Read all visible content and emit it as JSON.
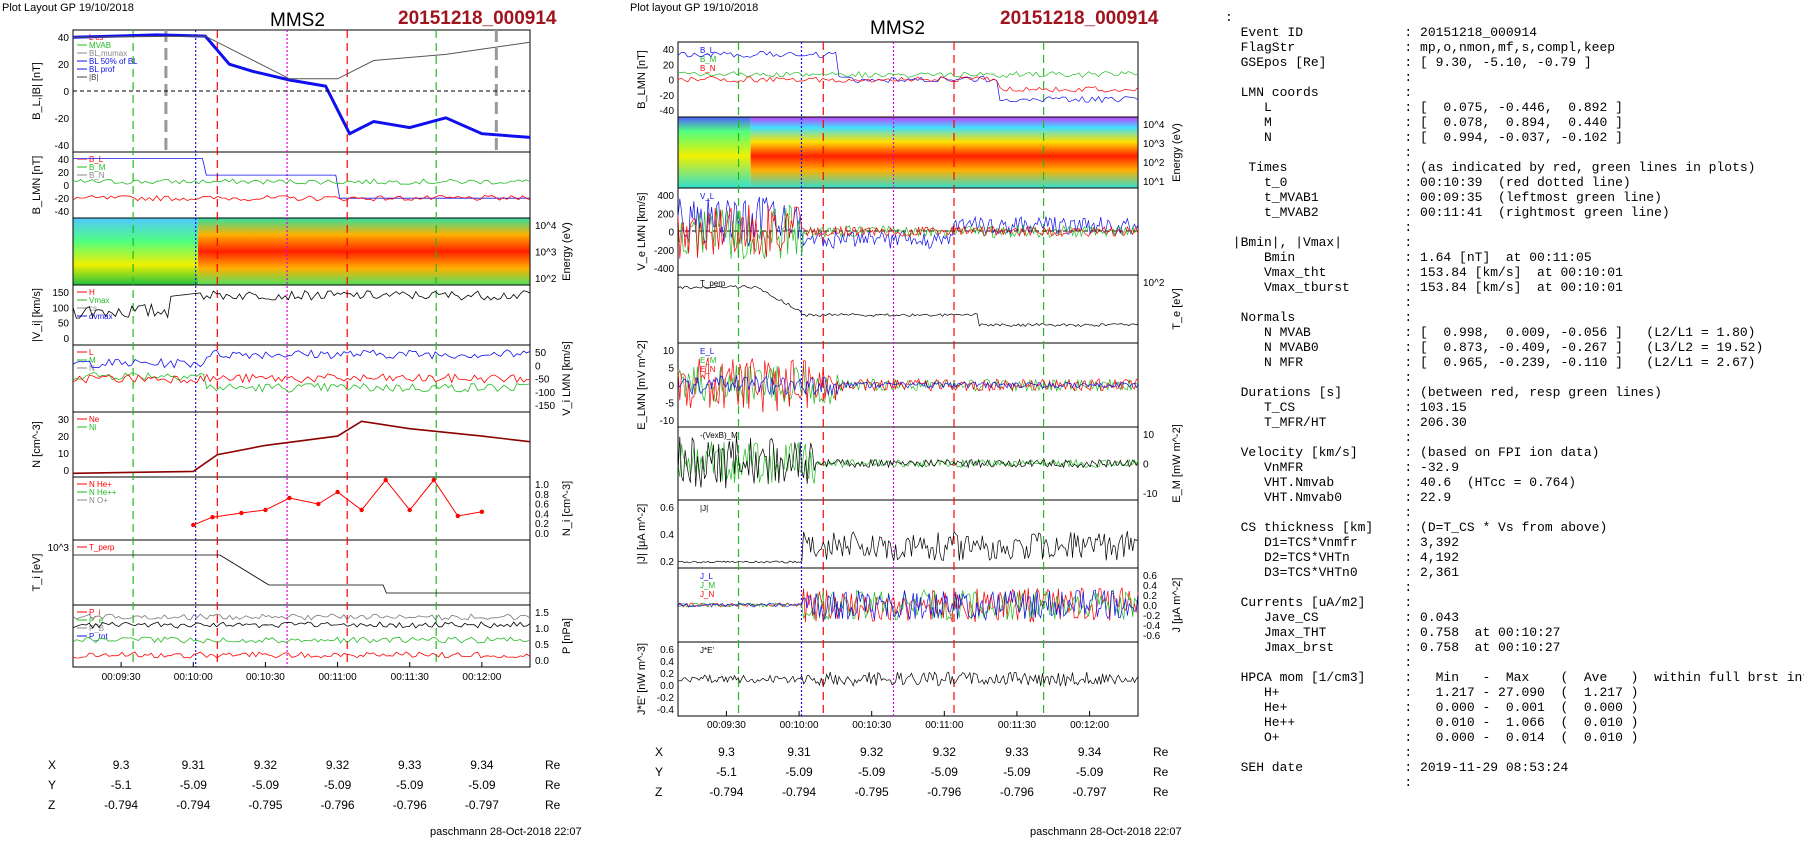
{
  "header": {
    "left_plot_layout": "Plot Layout GP 19/10/2018",
    "mid_plot_layout": "Plot layout GP 19/10/2018",
    "spacecraft": "MMS2",
    "event": "20151218_000914",
    "footer": "paschmann 28-Oct-2018 22:07"
  },
  "time_ticks": [
    "00:09:30",
    "00:10:00",
    "00:10:30",
    "00:11:00",
    "00:11:30",
    "00:12:00"
  ],
  "coord_table": {
    "rows": [
      {
        "label": "X",
        "values": [
          "9.3",
          "9.31",
          "9.32",
          "9.32",
          "9.33",
          "9.34"
        ],
        "unit": "Re"
      },
      {
        "label": "Y",
        "values": [
          "-5.1",
          "-5.09",
          "-5.09",
          "-5.09",
          "-5.09",
          "-5.09"
        ],
        "unit": "Re"
      },
      {
        "label": "Z",
        "values": [
          "-0.794",
          "-0.794",
          "-0.795",
          "-0.796",
          "-0.796",
          "-0.797"
        ],
        "unit": "Re"
      }
    ]
  },
  "left_panels": {
    "p1": {
      "ylabel": "B_L,|B| [nT]",
      "ticks": [
        "40",
        "20",
        "0",
        "-20",
        "-40"
      ],
      "legend": [
        "L cs",
        "MVAB",
        "BL,mumax",
        "BL 50% of BL",
        "BL prof",
        "|B|"
      ]
    },
    "p2": {
      "ylabel": "B_LMN [nT]",
      "ticks": [
        "40",
        "20",
        "0",
        "-20",
        "-40"
      ],
      "legend": [
        "B_L",
        "B_M",
        "B_N"
      ]
    },
    "p3": {
      "ylabel": "Energy (eV)",
      "ticks": [
        "10^4",
        "10^3",
        "10^2"
      ]
    },
    "p4": {
      "ylabel": "|V_i| [km/s]",
      "ticks": [
        "150",
        "100",
        "50",
        "0"
      ],
      "legend": [
        "H",
        "Vmax",
        "cs",
        "dvmax"
      ]
    },
    "p5": {
      "ylabel": "V_i LMN [km/s]",
      "ticks": [
        "50",
        "0",
        "-50",
        "-100",
        "-150"
      ],
      "legend": [
        "L",
        "M",
        "N"
      ]
    },
    "p6": {
      "ylabel": "N [cm^-3]",
      "ticks": [
        "30",
        "20",
        "10",
        "0"
      ],
      "legend": [
        "Ne",
        "Ni"
      ]
    },
    "p7": {
      "ylabel": "N_i [cm^-3]",
      "ticks": [
        "1.0",
        "0.8",
        "0.6",
        "0.4",
        "0.2",
        "0.0"
      ],
      "legend": [
        "N  He+",
        "N  He++",
        "N  O+"
      ]
    },
    "p8": {
      "ylabel": "T_i [eV]",
      "ticks": [
        "10^3"
      ],
      "legend": [
        "T_perp"
      ]
    },
    "p9": {
      "ylabel": "P [nPa]",
      "ticks": [
        "1.5",
        "1.0",
        "0.5",
        "0.0"
      ],
      "legend": [
        "P_i",
        "P_e",
        "P_B",
        "P_tot"
      ]
    }
  },
  "mid_panels": {
    "p1": {
      "ylabel": "B_LMN [nT]",
      "ticks": [
        "40",
        "20",
        "0",
        "-20",
        "-40"
      ],
      "legend": [
        "B_L",
        "B_M",
        "B_N"
      ]
    },
    "p2": {
      "ylabel": "Energy (eV)",
      "ticks": [
        "10^4",
        "10^3",
        "10^2",
        "10^1"
      ]
    },
    "p3": {
      "ylabel": "V_e LMN [km/s]",
      "ticks": [
        "400",
        "200",
        "0",
        "-200",
        "-400"
      ],
      "legend": [
        "V_L"
      ]
    },
    "p4": {
      "ylabel": "T_e [eV]",
      "ticks": [
        "10^2"
      ],
      "legend": [
        "T_perp"
      ]
    },
    "p5": {
      "ylabel": "E_LMN [mV m^-2]",
      "ticks": [
        "10",
        "5",
        "0",
        "-5",
        "-10"
      ],
      "legend": [
        "E_L",
        "E_M",
        "E_N"
      ]
    },
    "p6": {
      "ylabel": "E_M [mW m^-2]",
      "ticks": [
        "10",
        "0",
        "-10"
      ],
      "legend": [
        "-(VexB)_M"
      ]
    },
    "p7": {
      "ylabel": "|J| [μA m^-2]",
      "ticks": [
        "0.6",
        "0.4",
        "0.2"
      ],
      "legend": [
        "|J|"
      ]
    },
    "p8": {
      "ylabel": "J [μA m^-2]",
      "ticks": [
        "0.6",
        "0.4",
        "0.2",
        "0.0",
        "-0.2",
        "-0.4",
        "-0.6"
      ],
      "legend": [
        "J_L",
        "J_M",
        "J_N"
      ]
    },
    "p9": {
      "ylabel": "J*E' [nW m^-3]",
      "ticks": [
        "0.6",
        "0.4",
        "0.2",
        "0.0",
        "-0.2",
        "-0.4"
      ],
      "legend": [
        "J*E'"
      ]
    }
  },
  "chart_data": [
    {
      "type": "line",
      "title": "MMS2  20151218_000914",
      "xlabel": "",
      "x_ticks": [
        "00:09:30",
        "00:10:00",
        "00:10:30",
        "00:11:00",
        "00:11:30",
        "00:12:00"
      ],
      "series": [
        {
          "name": "B_L",
          "panel": "B_L,|B| [nT]",
          "x": [
            "00:09:10",
            "00:09:45",
            "00:10:05",
            "00:10:15",
            "00:10:25",
            "00:10:40",
            "00:10:55",
            "00:11:05",
            "00:11:15",
            "00:11:30",
            "00:11:45",
            "00:12:00",
            "00:12:20"
          ],
          "values": [
            44,
            46,
            45,
            22,
            16,
            9,
            4,
            -35,
            -25,
            -30,
            -22,
            -35,
            -38
          ]
        },
        {
          "name": "|B|",
          "panel": "B_L,|B| [nT]",
          "x": [
            "00:09:10",
            "00:10:05",
            "00:10:40",
            "00:11:00",
            "00:11:15",
            "00:11:45",
            "00:12:20"
          ],
          "values": [
            44,
            45,
            10,
            10,
            25,
            30,
            40
          ]
        },
        {
          "name": "Ni",
          "panel": "N [cm^-3]",
          "x": [
            "00:09:10",
            "00:10:00",
            "00:10:10",
            "00:10:30",
            "00:11:00",
            "00:11:10",
            "00:11:30",
            "00:12:00",
            "00:12:20"
          ],
          "values": [
            2,
            3,
            12,
            17,
            22,
            30,
            26,
            22,
            19
          ]
        },
        {
          "name": "N He++",
          "panel": "N_i [cm^-3]",
          "x": [
            "00:10:00",
            "00:10:08",
            "00:10:20",
            "00:10:30",
            "00:10:40",
            "00:10:52",
            "00:11:00",
            "00:11:10",
            "00:11:20",
            "00:11:30",
            "00:11:40",
            "00:11:50",
            "00:12:00"
          ],
          "values": [
            0.25,
            0.38,
            0.45,
            0.5,
            0.7,
            0.6,
            0.8,
            0.5,
            1.0,
            0.5,
            1.0,
            0.4,
            0.47
          ]
        }
      ]
    }
  ],
  "event_table": [
    {
      "text": ":"
    },
    {
      "text": "  Event ID             : 20151218_000914"
    },
    {
      "text": "  FlagStr              : mp,o,nmon,mf,s,compl,keep"
    },
    {
      "text": "  GSEpos [Re]          : [ 9.30, -5.10, -0.79 ]"
    },
    {
      "text": "                       :"
    },
    {
      "text": "  LMN coords           :"
    },
    {
      "text": "     L                 : [  0.075, -0.446,  0.892 ]"
    },
    {
      "text": "     M                 : [  0.078,  0.894,  0.440 ]"
    },
    {
      "text": "     N                 : [  0.994, -0.037, -0.102 ]"
    },
    {
      "text": "                       :"
    },
    {
      "text": "   Times               : (as indicated by red, green lines in plots)"
    },
    {
      "text": "     t_0               : 00:10:39  (red dotted line)"
    },
    {
      "text": "     t_MVAB1           : 00:09:35  (leftmost green line)"
    },
    {
      "text": "     t_MVAB2           : 00:11:41  (rightmost green line)"
    },
    {
      "text": "                       :"
    },
    {
      "text": " |Bmin|, |Vmax|        :"
    },
    {
      "text": "     Bmin              : 1.64 [nT]  at 00:11:05"
    },
    {
      "text": "     Vmax_tht          : 153.84 [km/s]  at 00:10:01"
    },
    {
      "text": "     Vmax_tburst       : 153.84 [km/s]  at 00:10:01"
    },
    {
      "text": "                       :"
    },
    {
      "text": "  Normals              :"
    },
    {
      "text": "     N MVAB            : [  0.998,  0.009, -0.056 ]   (L2/L1 = 1.80)"
    },
    {
      "text": "     N MVAB0           : [  0.873, -0.409, -0.267 ]   (L3/L2 = 19.52)"
    },
    {
      "text": "     N MFR             : [  0.965, -0.239, -0.110 ]   (L2/L1 = 2.67)"
    },
    {
      "text": "                       :"
    },
    {
      "text": "  Durations [s]        : (between red, resp green lines)"
    },
    {
      "text": "     T_CS              : 103.15"
    },
    {
      "text": "     T_MFR/HT          : 206.30"
    },
    {
      "text": "                       :"
    },
    {
      "text": "  Velocity [km/s]      : (based on FPI ion data)"
    },
    {
      "text": "     VnMFR             : -32.9"
    },
    {
      "text": "     VHT.Nmvab         : 40.6  (HTcc = 0.764)"
    },
    {
      "text": "     VHT.Nmvab0        : 22.9"
    },
    {
      "text": "                       :"
    },
    {
      "text": "  CS thickness [km]    : (D=T_CS * Vs from above)"
    },
    {
      "text": "     D1=TCS*Vnmfr      : 3,392"
    },
    {
      "text": "     D2=TCS*VHTn       : 4,192"
    },
    {
      "text": "     D3=TCS*VHTn0      : 2,361"
    },
    {
      "text": "                       :"
    },
    {
      "text": "  Currents [uA/m2]     :"
    },
    {
      "text": "     Jave_CS           : 0.043"
    },
    {
      "text": "     Jmax_THT          : 0.758  at 00:10:27"
    },
    {
      "text": "     Jmax_brst         : 0.758  at 00:10:27"
    },
    {
      "text": "                       :"
    },
    {
      "text": "  HPCA mom [1/cm3]     :   Min   -  Max    (  Ave   )  within full brst int"
    },
    {
      "text": "     H+                :   1.217 - 27.090  (  1.217 )"
    },
    {
      "text": "     He+               :   0.000 -  0.001  (  0.000 )"
    },
    {
      "text": "     He++              :   0.010 -  1.066  (  0.010 )"
    },
    {
      "text": "     O+                :   0.000 -  0.014  (  0.010 )"
    },
    {
      "text": "                       :"
    },
    {
      "text": "  SEH date             : 2019-11-29 08:53:24"
    },
    {
      "text": "                       :"
    }
  ],
  "colors": {
    "event": "#a0141e",
    "red": "#ff0000",
    "green": "#22bb22",
    "blue": "#1010ee",
    "magenta": "#dd00dd"
  }
}
